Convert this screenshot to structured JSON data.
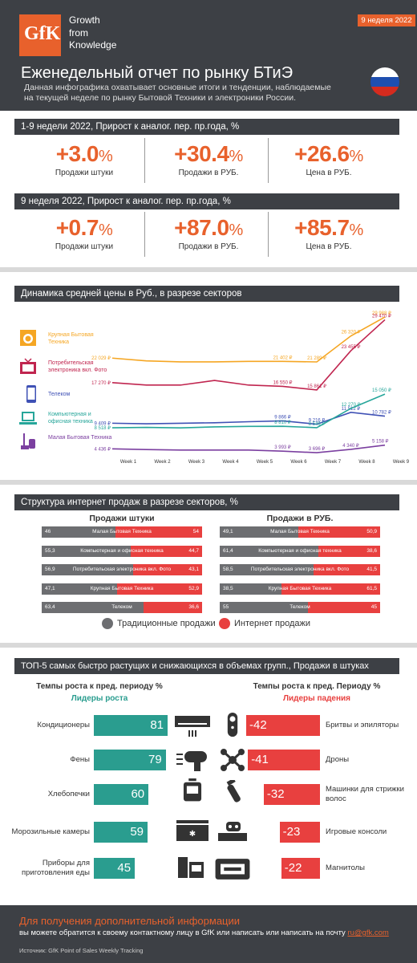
{
  "header": {
    "logo": "GfK",
    "tagline": [
      "Growth",
      "from",
      "Knowledge"
    ],
    "week": "9 неделя 2022",
    "title": "Еженедельный отчет по рынку БТиЭ",
    "subtitle": "Данная инфографика охватывает  основные итоги и тенденции, наблюдаемые на текущей неделе по рынку Бытовой Техники и электроники России."
  },
  "ytd": {
    "title": "1-9 недели 2022, Прирост к аналог. пер. пр.года, %",
    "kpis": [
      {
        "value": "+3.0",
        "unit": "%",
        "label": "Продажи штуки"
      },
      {
        "value": "+30.4",
        "unit": "%",
        "label": "Продажи в РУБ."
      },
      {
        "value": "+26.6",
        "unit": "%",
        "label": "Цена в РУБ."
      }
    ]
  },
  "week": {
    "title": "9 неделя 2022, Прирост к аналог. пер. пр.года, %",
    "kpis": [
      {
        "value": "+0.7",
        "unit": "%",
        "label": "Продажи штуки"
      },
      {
        "value": "+87.0",
        "unit": "%",
        "label": "Продажи в РУБ."
      },
      {
        "value": "+85.7",
        "unit": "%",
        "label": "Цена в РУБ."
      }
    ]
  },
  "price": {
    "title": "Динамика средней цены в Руб., в разрезе секторов",
    "sectors": [
      "Крупная Бытовая Техника",
      "Потребительская электроника вкл. Фото",
      "Телеком",
      "Компьютерная и офисная техника",
      "Малая Бытовая Техника"
    ]
  },
  "chart_data": {
    "type": "line",
    "categories": [
      "Week 1",
      "Week 2",
      "Week 3",
      "Week 4",
      "Week 5",
      "Week 6",
      "Week 7",
      "Week 8",
      "Week 9"
    ],
    "series": [
      {
        "name": "Крупная Бытовая Техника",
        "color": "#f5a623",
        "values": [
          22029,
          21500,
          21300,
          21300,
          21400,
          21402,
          21289,
          26320,
          29988
        ],
        "labels": [
          "22 029 ₽",
          "",
          "",
          "",
          "",
          "21 402 ₽",
          "21 289 ₽",
          "26 320 ₽",
          "29 988 ₽"
        ]
      },
      {
        "name": "Потребительская электроника вкл. Фото",
        "color": "#c0254f",
        "values": [
          17270,
          16800,
          16800,
          17700,
          16800,
          16550,
          15861,
          23455,
          29470
        ],
        "labels": [
          "17 270 ₽",
          "",
          "",
          "",
          "",
          "16 550 ₽",
          "15 861 ₽",
          "23 455 ₽",
          "29 470 ₽"
        ]
      },
      {
        "name": "Телеком",
        "color": "#3f51b5",
        "values": [
          9409,
          9300,
          9400,
          9500,
          9700,
          9866,
          9216,
          11512,
          10782
        ],
        "labels": [
          "9 409 ₽",
          "",
          "",
          "",
          "",
          "9 866 ₽",
          "9 216 ₽",
          "11 512 ₽",
          "10 782 ₽"
        ]
      },
      {
        "name": "Компьютерная и офисная техника",
        "color": "#26a69a",
        "values": [
          8518,
          8600,
          8500,
          8700,
          8800,
          8810,
          8549,
          12270,
          15050
        ],
        "labels": [
          "8 518 ₽",
          "",
          "",
          "",
          "",
          "8 810 ₽",
          "8 549 ₽",
          "12 270 ₽",
          "15 050 ₽"
        ]
      },
      {
        "name": "Малая Бытовая Техника",
        "color": "#7b3fa0",
        "values": [
          4436,
          4300,
          4200,
          4200,
          4200,
          3993,
          3696,
          4340,
          5158
        ],
        "labels": [
          "4 436 ₽",
          "",
          "",
          "",
          "",
          "3 993 ₽",
          "3 696 ₽",
          "4 340 ₽",
          "5 158 ₽"
        ]
      }
    ]
  },
  "structure": {
    "title": "Структура интернет продаж в разрезе секторов, %",
    "col_units": "Продажи штуки",
    "col_rub": "Продажи в РУБ.",
    "rows": [
      {
        "name": "Малая Бытовая Техника",
        "units": [
          46,
          54
        ],
        "rub": [
          49.1,
          50.9
        ],
        "units_l": [
          "46",
          "54"
        ],
        "rub_l": [
          "49,1",
          "50,9"
        ]
      },
      {
        "name": "Компьютерная и офисная техника",
        "units": [
          55.3,
          44.7
        ],
        "rub": [
          61.4,
          38.6
        ],
        "units_l": [
          "55,3",
          "44,7"
        ],
        "rub_l": [
          "61,4",
          "38,6"
        ]
      },
      {
        "name": "Потребительская электроника вкл. Фото",
        "units": [
          56.9,
          43.1
        ],
        "rub": [
          58.5,
          41.5
        ],
        "units_l": [
          "56,9",
          "43,1"
        ],
        "rub_l": [
          "58,5",
          "41,5"
        ]
      },
      {
        "name": "Крупная Бытовая Техника",
        "units": [
          47.1,
          52.9
        ],
        "rub": [
          38.5,
          61.5
        ],
        "units_l": [
          "47,1",
          "52,9"
        ],
        "rub_l": [
          "38,5",
          "61,5"
        ]
      },
      {
        "name": "Телеком",
        "units": [
          63.4,
          36.6
        ],
        "rub": [
          55,
          45
        ],
        "units_l": [
          "63,4",
          "36,6"
        ],
        "rub_l": [
          "55",
          "45"
        ]
      }
    ],
    "legend_trad": "Традиционные продажи",
    "legend_inet": "Интернет продажи"
  },
  "top5": {
    "title": "ТОП-5 самых быстро растущих и снижающихся в объемах групп., Продажи в штуках",
    "growth_head": "Темпы роста к пред. периоду %",
    "growth_sub": "Лидеры роста",
    "fall_head": "Темпы роста к пред. Периоду %",
    "fall_sub": "Лидеры падения",
    "growth": [
      {
        "name": "Кондиционеры",
        "value": 81
      },
      {
        "name": "Фены",
        "value": 79
      },
      {
        "name": "Хлебопечки",
        "value": 60
      },
      {
        "name": "Морозильные камеры",
        "value": 59
      },
      {
        "name": "Приборы для приготовления еды",
        "value": 45
      }
    ],
    "fall": [
      {
        "name": "Бритвы и эпиляторы",
        "value": -42
      },
      {
        "name": "Дроны",
        "value": -41
      },
      {
        "name": "Машинки для стрижки волос",
        "value": -32
      },
      {
        "name": "Игровые консоли",
        "value": -23
      },
      {
        "name": "Магнитолы",
        "value": -22
      }
    ]
  },
  "footer": {
    "headline": "Для получения дополнительной информации",
    "text": "вы можете обратится к своему контактному лицу в GfK или написать или написать на почту ",
    "email": "ru@gfk.com",
    "source": "Источник: GfK Point of Sales Weekly Tracking"
  },
  "colors": {
    "accent": "#e8612c",
    "dark": "#3d4045",
    "green": "#2a9d8f",
    "red": "#e8403f"
  }
}
